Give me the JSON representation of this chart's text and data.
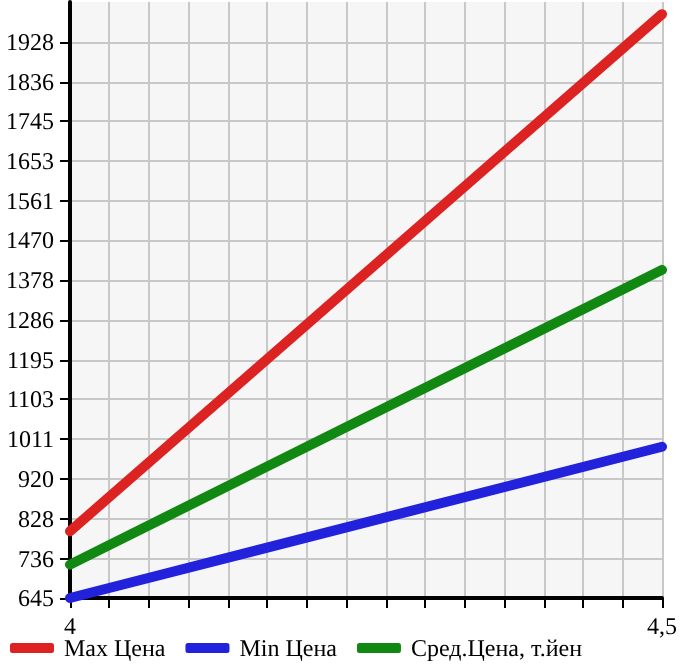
{
  "chart_data": {
    "type": "line",
    "x": [
      4,
      4.5
    ],
    "series": [
      {
        "name": "Max Цена",
        "color": "#dd2222",
        "values": [
          799,
          1992
        ]
      },
      {
        "name": "Min Цена",
        "color": "#2222dd",
        "values": [
          645,
          994
        ]
      },
      {
        "name": "Сред.Цена, т.йен",
        "color": "#118811",
        "values": [
          722,
          1402
        ]
      }
    ],
    "xlim": [
      4,
      4.5
    ],
    "xticks": [
      4,
      {
        "value": 4.5,
        "label": "4,5"
      }
    ],
    "ylim": [
      645,
      2020
    ],
    "yticks": [
      645,
      736,
      828,
      920,
      1011,
      1103,
      1195,
      1286,
      1378,
      1470,
      1561,
      1653,
      1745,
      1836,
      1928
    ],
    "grid": true,
    "legend": "bottom",
    "marker": "none",
    "line_style": "solid"
  }
}
